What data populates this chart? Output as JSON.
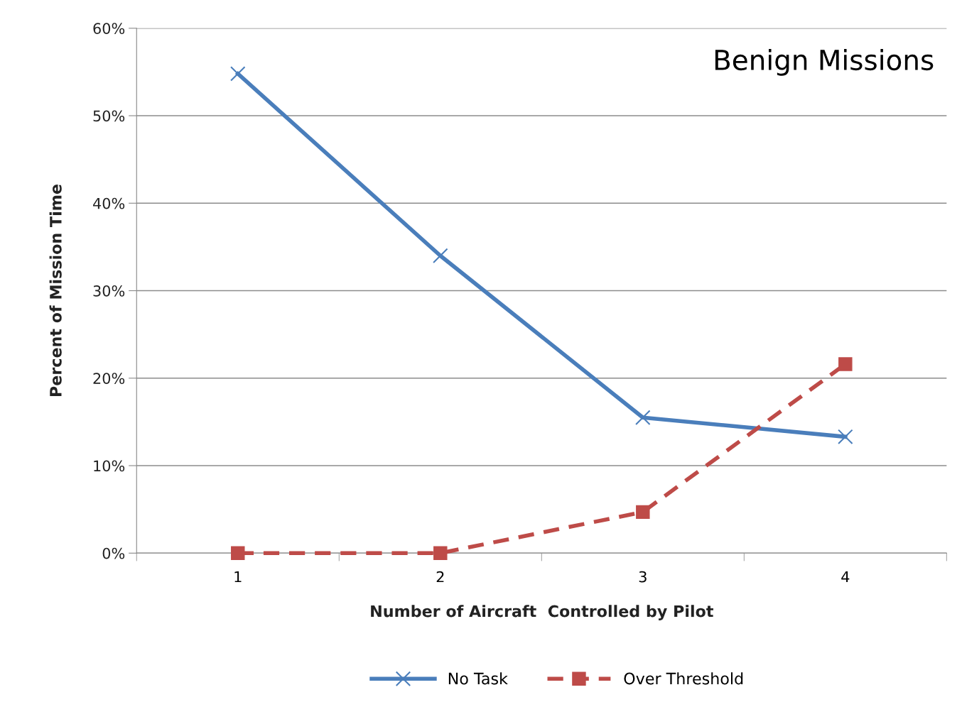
{
  "chart_data": {
    "type": "line",
    "title": "Benign Missions",
    "xlabel": "Number of Aircraft  Controlled by Pilot",
    "ylabel": "Percent of Mission Time",
    "categories": [
      "1",
      "2",
      "3",
      "4"
    ],
    "series": [
      {
        "name": "No Task",
        "color": "#4a7ebb",
        "values": [
          54.8,
          34,
          15.5,
          13.3
        ],
        "marker": "cross",
        "line_style": "solid"
      },
      {
        "name": "Over Threshold",
        "color": "#be4b48",
        "values": [
          0,
          0,
          4.7,
          21.6
        ],
        "marker": "square",
        "line_style": "dashed"
      }
    ],
    "ylim": [
      0,
      60
    ],
    "yticks": [
      {
        "value": 0,
        "label": "0%"
      },
      {
        "value": 10,
        "label": "10%"
      },
      {
        "value": 20,
        "label": "20%"
      },
      {
        "value": 30,
        "label": "30%"
      },
      {
        "value": 40,
        "label": "40%"
      },
      {
        "value": 50,
        "label": "50%"
      },
      {
        "value": 60,
        "label": "60%"
      }
    ],
    "grid": "y",
    "legend": "bottom"
  }
}
